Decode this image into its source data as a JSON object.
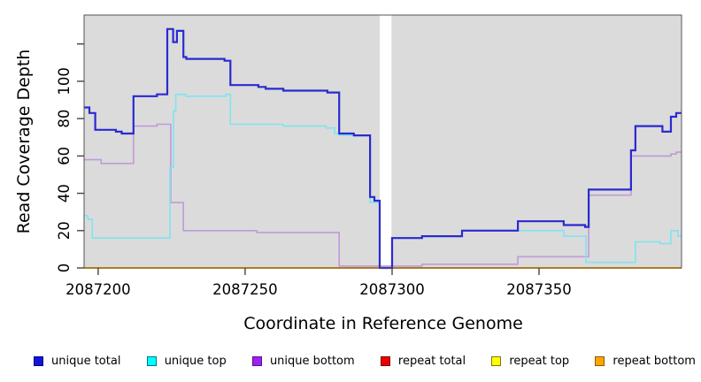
{
  "chart_data": {
    "type": "line",
    "step_mode": "after",
    "title": "",
    "xlabel": "Coordinate in Reference Genome",
    "ylabel": "Read Coverage Depth",
    "xlim": [
      2087195.2,
      2087398.5
    ],
    "ylim": [
      0,
      135.5
    ],
    "x_ticks": [
      2087200,
      2087250,
      2087300,
      2087350
    ],
    "y_ticks": [
      {
        "v": 0,
        "label": "0"
      },
      {
        "v": 20,
        "label": "20"
      },
      {
        "v": 40,
        "label": "40"
      },
      {
        "v": 60,
        "label": "60"
      },
      {
        "v": 80,
        "label": "80"
      },
      {
        "v": 100,
        "label": "100"
      },
      {
        "v": 120,
        "label": ""
      }
    ],
    "plot_background": "#dbdbdb",
    "page_background": "#ffffff",
    "box_color": "#555555",
    "no_data_gap": {
      "x0": 2087295.8,
      "x1": 2087299.8,
      "color": "#ffffff"
    },
    "grid": false,
    "legend_position": "bottom",
    "series": [
      {
        "name": "repeat total",
        "line_color": "#e30000",
        "lwd": 1.5,
        "points": [
          [
            2087195.2,
            0
          ]
        ]
      },
      {
        "name": "repeat top",
        "line_color": "#ffff00",
        "lwd": 1.5,
        "points": [
          [
            2087195.2,
            0
          ]
        ]
      },
      {
        "name": "repeat bottom",
        "line_color": "#ffa500",
        "lwd": 2,
        "points": [
          [
            2087195.2,
            0
          ]
        ]
      },
      {
        "name": "unique bottom",
        "line_color": "#c09adb",
        "lwd": 1.6,
        "points": [
          [
            2087195.2,
            58
          ],
          [
            2087201,
            56
          ],
          [
            2087212,
            76
          ],
          [
            2087220,
            77
          ],
          [
            2087224.7,
            35
          ],
          [
            2087229,
            20
          ],
          [
            2087254,
            19
          ],
          [
            2087282,
            1
          ],
          [
            2087310.2,
            2
          ],
          [
            2087342.8,
            6
          ],
          [
            2087366.9,
            39
          ],
          [
            2087381.3,
            60
          ],
          [
            2087394.9,
            61
          ],
          [
            2087396.7,
            62
          ]
        ]
      },
      {
        "name": "unique top",
        "line_color": "#7fe4f0",
        "lwd": 1.6,
        "points": [
          [
            2087195.2,
            28
          ],
          [
            2087196.5,
            26
          ],
          [
            2087198,
            16
          ],
          [
            2087224.4,
            54
          ],
          [
            2087225.6,
            84
          ],
          [
            2087226.4,
            93
          ],
          [
            2087229.8,
            92
          ],
          [
            2087243.5,
            93
          ],
          [
            2087245,
            77
          ],
          [
            2087263,
            76
          ],
          [
            2087277.5,
            75
          ],
          [
            2087280.5,
            72
          ],
          [
            2087282,
            71
          ],
          [
            2087292.5,
            35
          ],
          [
            2087295.8,
            0
          ],
          [
            2087300,
            16
          ],
          [
            2087310.2,
            17
          ],
          [
            2087323.8,
            20
          ],
          [
            2087358.4,
            17
          ],
          [
            2087366,
            3
          ],
          [
            2087382.8,
            14
          ],
          [
            2087391.3,
            13
          ],
          [
            2087394.9,
            20
          ],
          [
            2087397.3,
            17
          ]
        ]
      },
      {
        "name": "unique total",
        "line_color": "#2a2ad0",
        "lwd": 2.2,
        "points": [
          [
            2087195.2,
            86
          ],
          [
            2087197,
            83
          ],
          [
            2087199,
            74
          ],
          [
            2087206,
            73
          ],
          [
            2087208,
            72
          ],
          [
            2087212,
            92
          ],
          [
            2087220,
            93
          ],
          [
            2087223.5,
            128
          ],
          [
            2087225.5,
            121
          ],
          [
            2087226.8,
            127
          ],
          [
            2087229,
            113
          ],
          [
            2087230,
            112
          ],
          [
            2087243,
            111
          ],
          [
            2087245,
            98
          ],
          [
            2087254.5,
            97
          ],
          [
            2087257,
            96
          ],
          [
            2087263,
            95
          ],
          [
            2087278,
            94
          ],
          [
            2087282,
            72
          ],
          [
            2087287,
            71
          ],
          [
            2087292.5,
            38
          ],
          [
            2087294,
            36
          ],
          [
            2087295.8,
            0
          ],
          [
            2087300,
            16
          ],
          [
            2087310.2,
            17
          ],
          [
            2087323.8,
            20
          ],
          [
            2087342.8,
            25
          ],
          [
            2087358.4,
            23
          ],
          [
            2087365.7,
            22
          ],
          [
            2087366.9,
            42
          ],
          [
            2087381.3,
            63
          ],
          [
            2087382.8,
            76
          ],
          [
            2087392,
            73
          ],
          [
            2087394.9,
            81
          ],
          [
            2087396.7,
            83
          ]
        ]
      }
    ]
  },
  "legend": {
    "items": [
      {
        "label": "unique total",
        "fill": "#1414d8",
        "border": "#00008b"
      },
      {
        "label": "unique top",
        "fill": "#00ffff",
        "border": "#00708b"
      },
      {
        "label": "unique bottom",
        "fill": "#a020f0",
        "border": "#5a0e8b"
      },
      {
        "label": "repeat total",
        "fill": "#ee0000",
        "border": "#7a0000"
      },
      {
        "label": "repeat top",
        "fill": "#ffff00",
        "border": "#7a7a00"
      },
      {
        "label": "repeat bottom",
        "fill": "#ffa500",
        "border": "#8b5a00"
      }
    ]
  }
}
